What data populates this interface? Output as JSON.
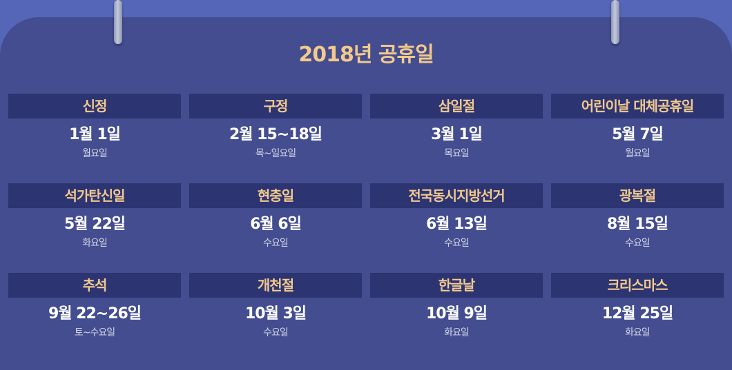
{
  "title": "2018년 공휴일",
  "colors": {
    "background": "#5565b8",
    "board": "#434d8f",
    "label_bar": "#2c3472",
    "accent": "#f3c98c",
    "date_text": "#ffffff",
    "weekday_text": "#d4d7e8"
  },
  "holidays": [
    {
      "name": "신정",
      "date": "1월 1일",
      "weekday": "월요일"
    },
    {
      "name": "구정",
      "date": "2월 15~18일",
      "weekday": "목~일요일"
    },
    {
      "name": "삼일절",
      "date": "3월 1일",
      "weekday": "목요일"
    },
    {
      "name": "어린이날 대체공휴일",
      "date": "5월 7일",
      "weekday": "월요일"
    },
    {
      "name": "석가탄신일",
      "date": "5월 22일",
      "weekday": "화요일"
    },
    {
      "name": "현충일",
      "date": "6월 6일",
      "weekday": "수요일"
    },
    {
      "name": "전국동시지방선거",
      "date": "6월 13일",
      "weekday": "수요일"
    },
    {
      "name": "광복절",
      "date": "8월 15일",
      "weekday": "수요일"
    },
    {
      "name": "추석",
      "date": "9월 22~26일",
      "weekday": "토~수요일"
    },
    {
      "name": "개천절",
      "date": "10월 3일",
      "weekday": "수요일"
    },
    {
      "name": "한글날",
      "date": "10월 9일",
      "weekday": "화요일"
    },
    {
      "name": "크리스마스",
      "date": "12월 25일",
      "weekday": "화요일"
    }
  ]
}
